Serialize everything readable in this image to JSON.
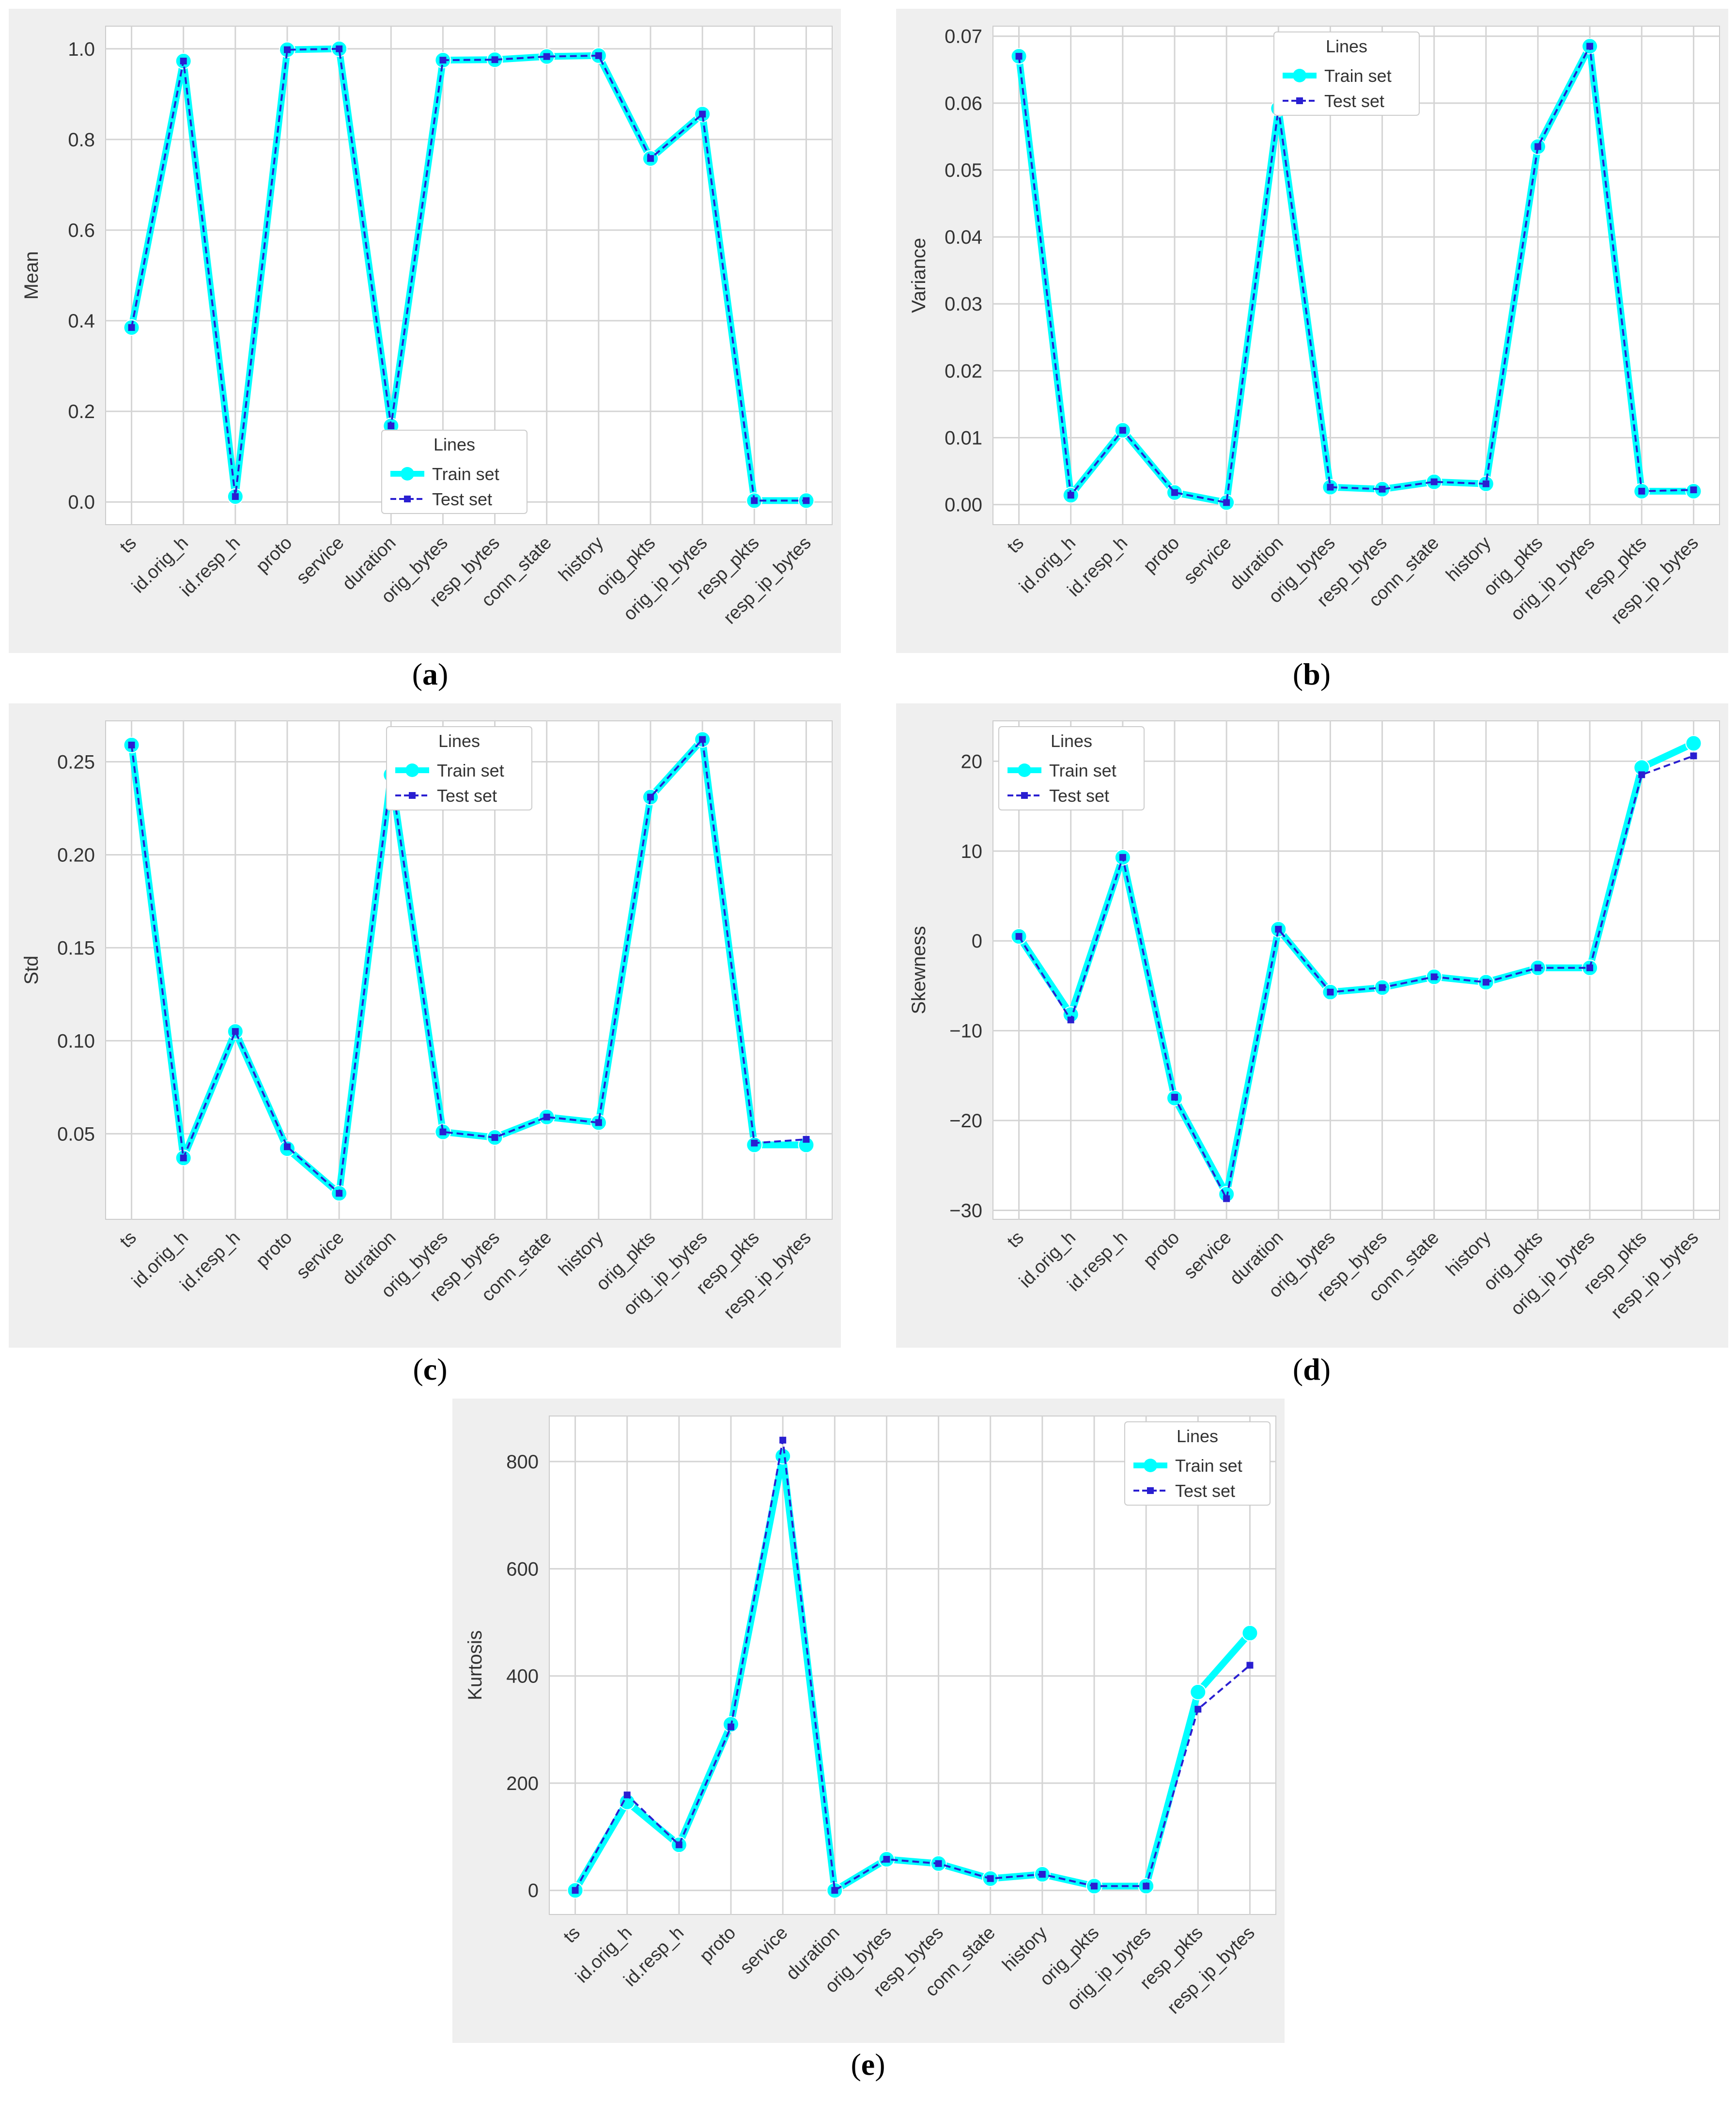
{
  "colors": {
    "train": "#00ffff",
    "test": "#2a1fd1",
    "panel_bg": "#efefef",
    "plot_bg": "#ffffff",
    "grid": "#d4d4d4"
  },
  "charts": [
    {
      "type": "line",
      "caption": "a",
      "ylabel": "Mean",
      "ylim": [
        -0.05,
        1.05
      ],
      "yticks": [
        "0.0",
        "0.2",
        "0.4",
        "0.6",
        "0.8",
        "1.0"
      ],
      "ytick_values": [
        0.0,
        0.2,
        0.4,
        0.6,
        0.8,
        1.0
      ],
      "legend": {
        "title": "Lines",
        "train": "Train set",
        "test": "Test set",
        "position": "lower-center"
      },
      "categories": [
        "ts",
        "id.orig_h",
        "id.resp_h",
        "proto",
        "service",
        "duration",
        "orig_bytes",
        "resp_bytes",
        "conn_state",
        "history",
        "orig_pkts",
        "orig_ip_bytes",
        "resp_pkts",
        "resp_ip_bytes"
      ],
      "train": [
        0.385,
        0.973,
        0.012,
        0.998,
        1.0,
        0.168,
        0.975,
        0.976,
        0.983,
        0.985,
        0.758,
        0.856,
        0.003,
        0.003
      ],
      "test": [
        0.385,
        0.973,
        0.012,
        0.998,
        1.0,
        0.168,
        0.975,
        0.976,
        0.983,
        0.985,
        0.758,
        0.856,
        0.003,
        0.003
      ]
    },
    {
      "type": "line",
      "caption": "b",
      "ylabel": "Variance",
      "ylim": [
        -0.003,
        0.0715
      ],
      "yticks": [
        "0.00",
        "0.01",
        "0.02",
        "0.03",
        "0.04",
        "0.05",
        "0.06",
        "0.07"
      ],
      "ytick_values": [
        0.0,
        0.01,
        0.02,
        0.03,
        0.04,
        0.05,
        0.06,
        0.07
      ],
      "legend": {
        "title": "Lines",
        "train": "Train set",
        "test": "Test set",
        "position": "top-center"
      },
      "categories": [
        "ts",
        "id.orig_h",
        "id.resp_h",
        "proto",
        "service",
        "duration",
        "orig_bytes",
        "resp_bytes",
        "conn_state",
        "history",
        "orig_pkts",
        "orig_ip_bytes",
        "resp_pkts",
        "resp_ip_bytes"
      ],
      "train": [
        0.067,
        0.0014,
        0.0111,
        0.0018,
        0.0003,
        0.0592,
        0.0026,
        0.0023,
        0.0034,
        0.0031,
        0.0535,
        0.0685,
        0.002,
        0.002
      ],
      "test": [
        0.067,
        0.0014,
        0.0111,
        0.0018,
        0.0003,
        0.0592,
        0.0026,
        0.0023,
        0.0034,
        0.0031,
        0.0535,
        0.0685,
        0.002,
        0.0022
      ]
    },
    {
      "type": "line",
      "caption": "c",
      "ylabel": "Std",
      "ylim": [
        0.004,
        0.272
      ],
      "yticks": [
        "0.05",
        "0.10",
        "0.15",
        "0.20",
        "0.25"
      ],
      "ytick_values": [
        0.05,
        0.1,
        0.15,
        0.2,
        0.25
      ],
      "legend": {
        "title": "Lines",
        "train": "Train set",
        "test": "Test set",
        "position": "top-center"
      },
      "categories": [
        "ts",
        "id.orig_h",
        "id.resp_h",
        "proto",
        "service",
        "duration",
        "orig_bytes",
        "resp_bytes",
        "conn_state",
        "history",
        "orig_pkts",
        "orig_ip_bytes",
        "resp_pkts",
        "resp_ip_bytes"
      ],
      "train": [
        0.259,
        0.037,
        0.105,
        0.042,
        0.018,
        0.243,
        0.051,
        0.048,
        0.059,
        0.056,
        0.231,
        0.262,
        0.044,
        0.044
      ],
      "test": [
        0.259,
        0.037,
        0.105,
        0.043,
        0.018,
        0.243,
        0.051,
        0.048,
        0.059,
        0.056,
        0.231,
        0.262,
        0.045,
        0.047
      ]
    },
    {
      "type": "line",
      "caption": "d",
      "ylabel": "Skewness",
      "ylim": [
        -31.0,
        24.5
      ],
      "yticks": [
        "−30",
        "−20",
        "−10",
        "0",
        "10",
        "20"
      ],
      "ytick_values": [
        -30,
        -20,
        -10,
        0,
        10,
        20
      ],
      "legend": {
        "title": "Lines",
        "train": "Train set",
        "test": "Test set",
        "position": "top-left"
      },
      "categories": [
        "ts",
        "id.orig_h",
        "id.resp_h",
        "proto",
        "service",
        "duration",
        "orig_bytes",
        "resp_bytes",
        "conn_state",
        "history",
        "orig_pkts",
        "orig_ip_bytes",
        "resp_pkts",
        "resp_ip_bytes"
      ],
      "train": [
        0.5,
        -8.2,
        9.3,
        -17.5,
        -28.2,
        1.3,
        -5.7,
        -5.2,
        -4.0,
        -4.6,
        -3.0,
        -3.0,
        19.3,
        22.0
      ],
      "test": [
        0.5,
        -8.8,
        9.3,
        -17.4,
        -28.7,
        1.3,
        -5.7,
        -5.2,
        -4.0,
        -4.6,
        -3.0,
        -3.0,
        18.5,
        20.6
      ]
    },
    {
      "type": "line",
      "caption": "e",
      "ylabel": "Kurtosis",
      "ylim": [
        -45,
        885
      ],
      "yticks": [
        "0",
        "200",
        "400",
        "600",
        "800"
      ],
      "ytick_values": [
        0,
        200,
        400,
        600,
        800
      ],
      "legend": {
        "title": "Lines",
        "train": "Train set",
        "test": "Test set",
        "position": "top-right"
      },
      "categories": [
        "ts",
        "id.orig_h",
        "id.resp_h",
        "proto",
        "service",
        "duration",
        "orig_bytes",
        "resp_bytes",
        "conn_state",
        "history",
        "orig_pkts",
        "orig_ip_bytes",
        "resp_pkts",
        "resp_ip_bytes"
      ],
      "train": [
        0,
        165,
        85,
        310,
        810,
        0,
        58,
        50,
        22,
        30,
        8,
        8,
        370,
        480
      ],
      "test": [
        0,
        178,
        85,
        305,
        840,
        0,
        58,
        50,
        22,
        30,
        8,
        8,
        338,
        420
      ]
    }
  ]
}
